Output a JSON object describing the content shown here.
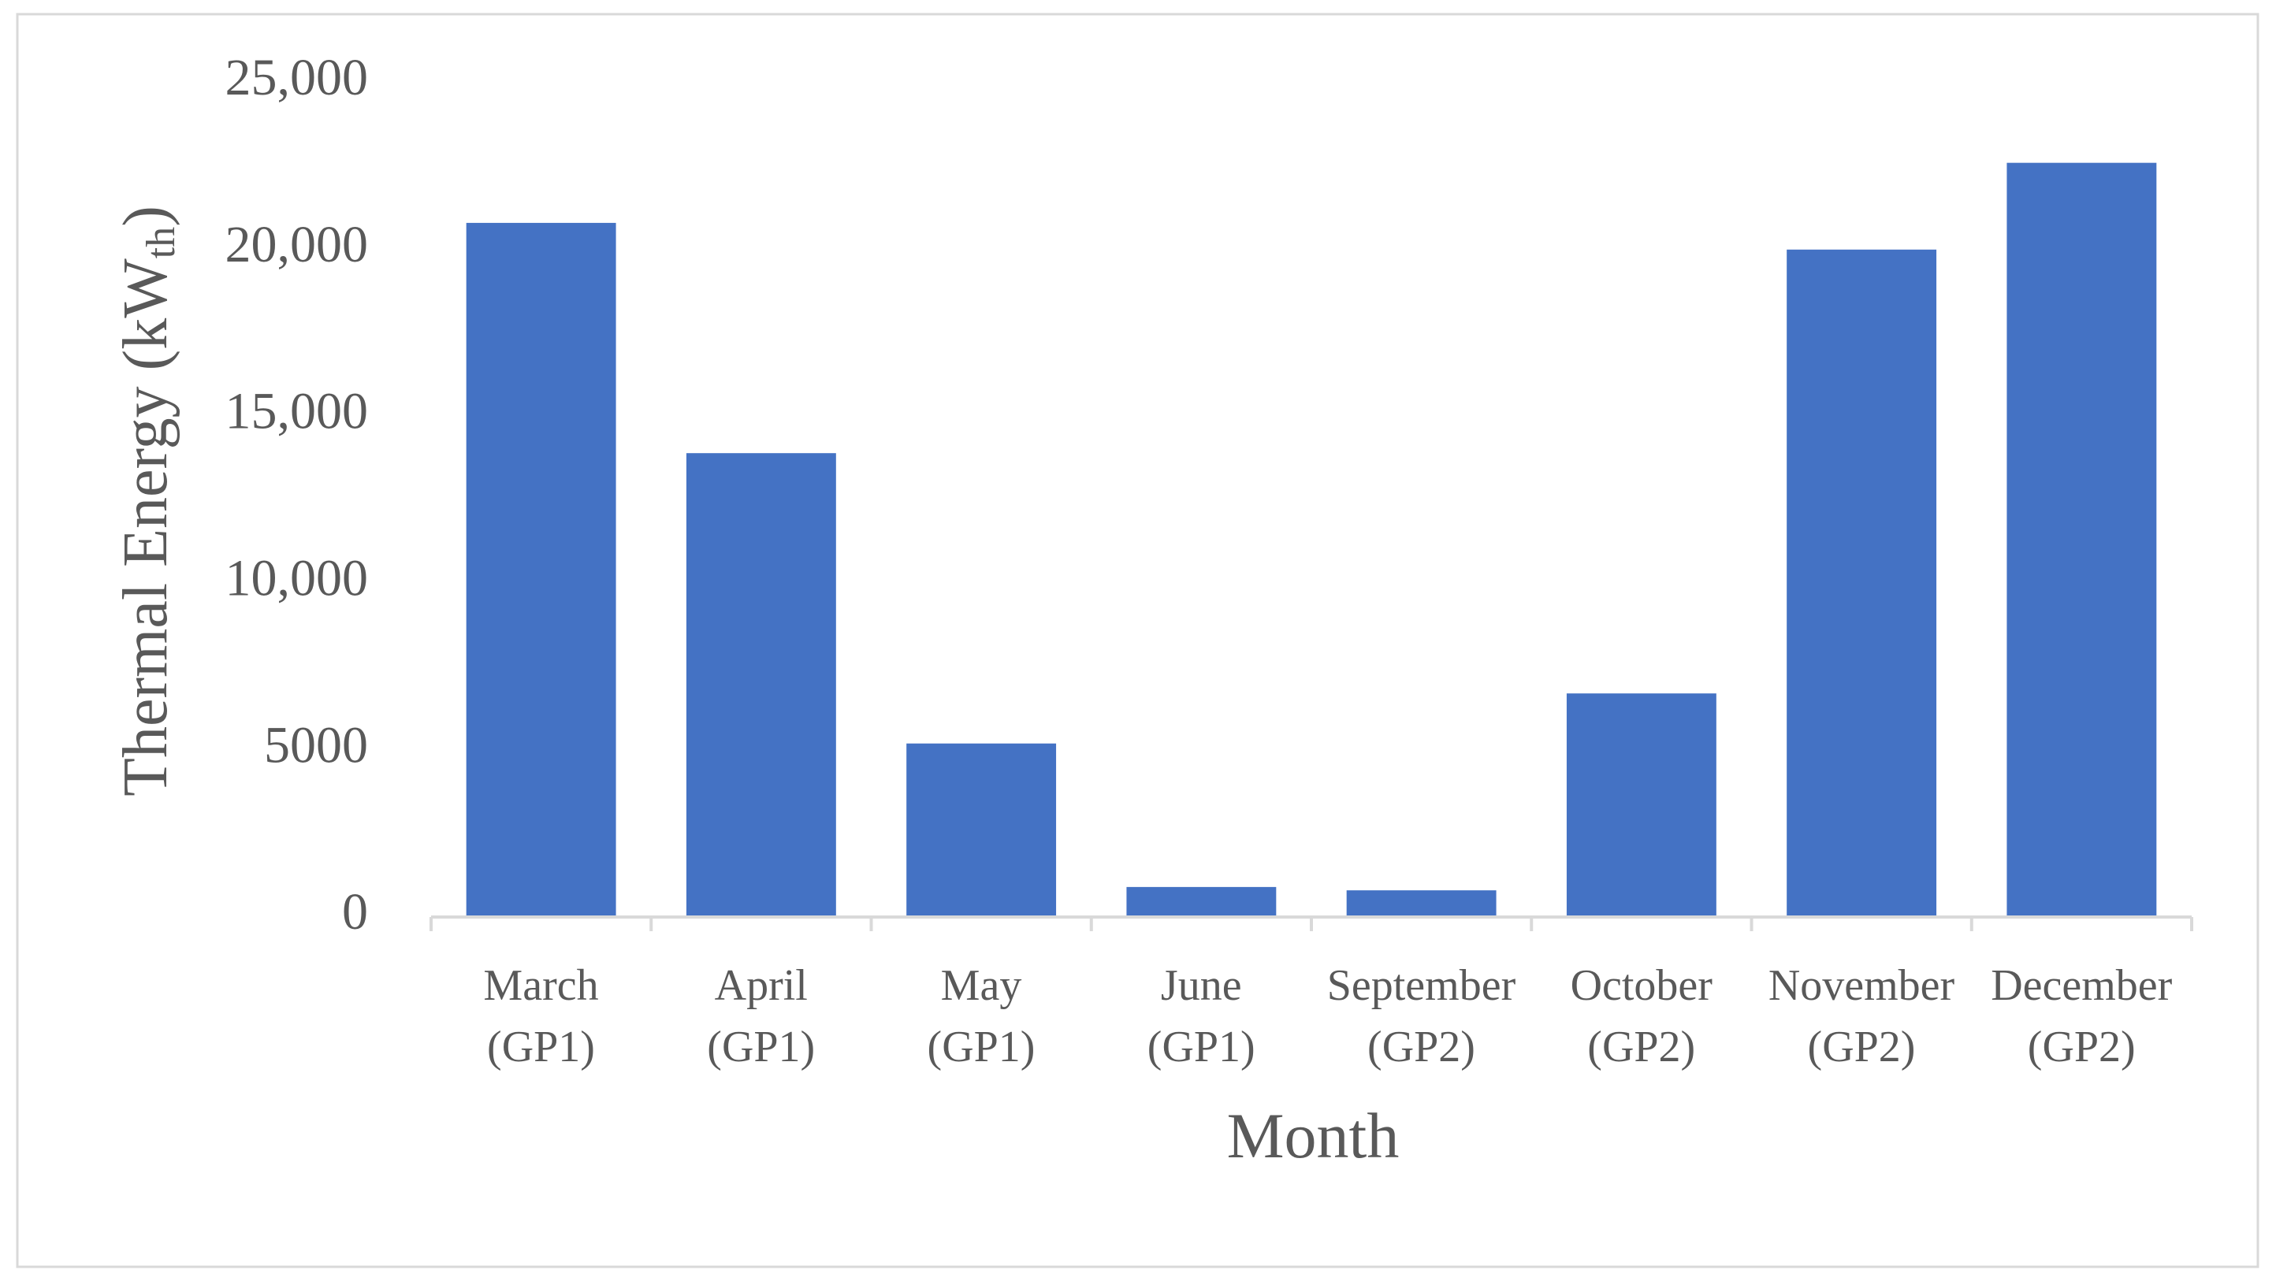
{
  "chart_data": {
    "type": "bar",
    "x_label": "Month",
    "y_label": {
      "main": "Thermal Energy (kW",
      "sub": "th",
      "end": ")"
    },
    "categories": [
      "March\n(GP1)",
      "April\n(GP1)",
      "May\n(GP1)",
      "June\n(GP1)",
      "September\n(GP2)",
      "October\n(GP2)",
      "November\n(GP2)",
      "December\n(GP2)"
    ],
    "values": [
      20800,
      13900,
      5200,
      900,
      800,
      6700,
      20000,
      22600
    ],
    "color": "#4472c4",
    "ylim": [
      0,
      25000
    ],
    "yticks": [
      0,
      5000,
      {
        "value": 10000,
        "label": "10,000"
      },
      {
        "value": 15000,
        "label": "15,000"
      },
      {
        "value": 20000,
        "label": "20,000"
      },
      {
        "value": 25000,
        "label": "25,000"
      }
    ],
    "grid": false
  }
}
